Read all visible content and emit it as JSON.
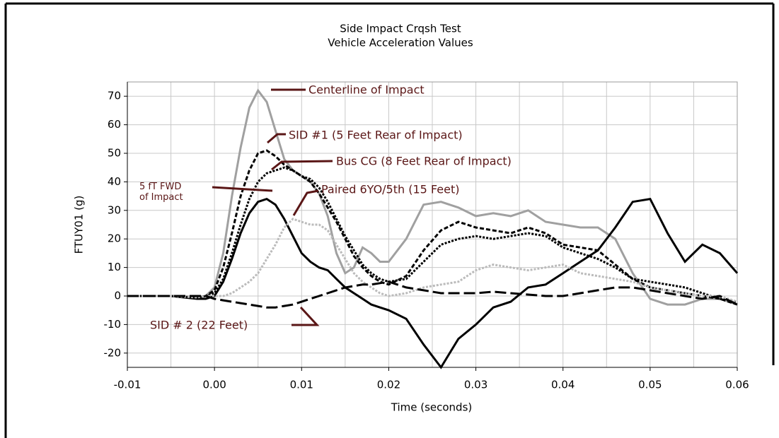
{
  "chart_data": {
    "type": "line",
    "title": "Side Impact Crqsh Test",
    "subtitle": "Vehicle Acceleration Values",
    "x_label": "Time (seconds)",
    "y_label": "FTUY01 (g)",
    "xlim": [
      -0.01,
      0.06
    ],
    "ylim": [
      -25,
      75
    ],
    "xticks": [
      -0.01,
      {
        "value": 0,
        "label": "0.00"
      },
      0.01,
      0.02,
      0.03,
      0.04,
      0.05,
      0.06
    ],
    "x_minor_grid": [
      -0.005,
      0.005,
      0.015,
      0.025,
      0.035,
      0.045,
      0.055
    ],
    "yticks": [
      -20,
      -10,
      0,
      10,
      20,
      30,
      40,
      50,
      60,
      70
    ],
    "grid": true,
    "x": [
      -0.01,
      -0.005,
      -0.002,
      -0.001,
      0,
      0.001,
      0.002,
      0.003,
      0.004,
      0.005,
      0.006,
      0.007,
      0.008,
      0.009,
      0.01,
      0.011,
      0.012,
      0.013,
      0.014,
      0.015,
      0.016,
      0.017,
      0.018,
      0.019,
      0.02,
      0.022,
      0.024,
      0.026,
      0.028,
      0.03,
      0.032,
      0.034,
      0.036,
      0.038,
      0.04,
      0.042,
      0.044,
      0.046,
      0.048,
      0.05,
      0.052,
      0.054,
      0.056,
      0.058,
      0.06
    ],
    "series": [
      {
        "name": "Centerline of Impact",
        "color": "#a0a0a0",
        "style": "solid",
        "values": [
          0,
          0,
          -0.5,
          0,
          3,
          15,
          35,
          52,
          66,
          72,
          68,
          58,
          48,
          44,
          42,
          40,
          36,
          28,
          15,
          8,
          10,
          17,
          15,
          12,
          12,
          20,
          32,
          33,
          31,
          28,
          29,
          28,
          30,
          26,
          25,
          24,
          24,
          20,
          8,
          -1,
          -3,
          -3,
          -1,
          -1,
          -3
        ]
      },
      {
        "name": "SID #1 (5 Feet Rear of Impact)",
        "color": "#000000",
        "style": "dashed",
        "values": [
          0,
          0,
          -0.5,
          0,
          2,
          10,
          22,
          35,
          44,
          50,
          51,
          49,
          46,
          44,
          42,
          40,
          36,
          31,
          26,
          20,
          14,
          10,
          7,
          5,
          4,
          7,
          16,
          23,
          26,
          24,
          23,
          22,
          24,
          22,
          18,
          17,
          16,
          11,
          6,
          3,
          2,
          1,
          0,
          -1,
          -3
        ]
      },
      {
        "name": "Bus CG (8 Feet Rear of Impact)",
        "color": "#000000",
        "style": "dotted",
        "values": [
          0,
          0,
          -0.5,
          0,
          1,
          6,
          15,
          25,
          34,
          40,
          43,
          44,
          45,
          44,
          42,
          41,
          38,
          33,
          27,
          21,
          16,
          11,
          8,
          6,
          5,
          6,
          12,
          18,
          20,
          21,
          20,
          21,
          22,
          21,
          17,
          15,
          13,
          10,
          6,
          5,
          4,
          3,
          1,
          -1,
          -2
        ]
      },
      {
        "name": "5 fT FWD of Impact",
        "color": "#000000",
        "style": "solid",
        "values": [
          0,
          0,
          -1,
          -1,
          0,
          5,
          13,
          22,
          29,
          33,
          34,
          32,
          27,
          21,
          15,
          12,
          10,
          9,
          6,
          3,
          1,
          -1,
          -3,
          -4,
          -5,
          -8,
          -17,
          -25,
          -15,
          -10,
          -4,
          -2,
          3,
          4,
          8,
          12,
          16,
          24,
          33,
          34,
          22,
          12,
          18,
          15,
          8
        ]
      },
      {
        "name": "Paired 6YO/5th (15 Feet)",
        "color": "#bbbbbb",
        "style": "dotted",
        "values": [
          0,
          0,
          -0.5,
          0,
          0,
          0,
          1,
          3,
          5,
          8,
          13,
          18,
          24,
          27,
          26,
          25,
          25,
          23,
          18,
          13,
          8,
          5,
          3,
          1,
          0,
          1,
          3,
          4,
          5,
          9,
          11,
          10,
          9,
          10,
          11,
          8,
          7,
          6,
          5,
          3,
          2,
          1,
          0,
          0,
          -2
        ]
      },
      {
        "name": "SID # 2 (22 Feet)",
        "color": "#000000",
        "style": "long-dash",
        "values": [
          0,
          0,
          0,
          0,
          -1,
          -1.5,
          -2,
          -2.5,
          -3,
          -3.5,
          -4,
          -4,
          -3.5,
          -3,
          -2,
          -1,
          0,
          1,
          2,
          3,
          3.5,
          4,
          4,
          4.5,
          5,
          3,
          2,
          1,
          1,
          1,
          1.5,
          1,
          0.5,
          0,
          0,
          1,
          2,
          3,
          3,
          2,
          1,
          0,
          -1,
          0,
          -3
        ]
      }
    ]
  }
}
